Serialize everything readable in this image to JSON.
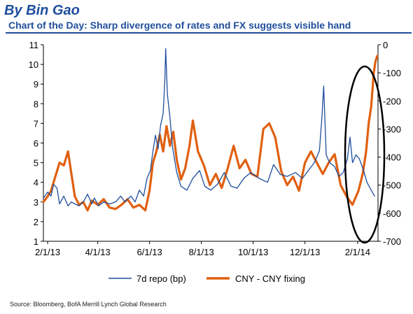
{
  "header": {
    "byline": "By Bin Gao",
    "title": "Chart of the Day: Sharp divergence of rates and FX suggests visible hand"
  },
  "source": "Source: Bloomberg, BofA Merrill Lynch Global Research",
  "chart_data": {
    "type": "line",
    "x_labels": [
      "2/1/13",
      "4/1/13",
      "6/1/13",
      "8/1/13",
      "10/1/13",
      "12/1/13",
      "2/1/14"
    ],
    "x_range": [
      "2013-01-27",
      "2014-02-25"
    ],
    "y_left": {
      "ticks": [
        "1",
        "2",
        "3",
        "4",
        "5",
        "6",
        "7",
        "8",
        "9",
        "10",
        "11"
      ],
      "range": [
        1,
        11
      ]
    },
    "y_right": {
      "ticks": [
        "0",
        "-100",
        "-200",
        "-300",
        "-400",
        "-500",
        "-600",
        "-700"
      ],
      "range": [
        -700,
        0
      ]
    },
    "grid": false,
    "legend": {
      "placement": "bottom"
    },
    "annotation": "ellipse-highlight",
    "series": [
      {
        "name": "7d repo (bp)",
        "axis": "left",
        "color": "#1f4e9c",
        "points": [
          [
            "2013-01-27",
            3.2
          ],
          [
            "2013-02-01",
            3.5
          ],
          [
            "2013-02-05",
            3.3
          ],
          [
            "2013-02-08",
            3.9
          ],
          [
            "2013-02-12",
            3.7
          ],
          [
            "2013-02-15",
            2.9
          ],
          [
            "2013-02-20",
            3.3
          ],
          [
            "2013-02-25",
            2.8
          ],
          [
            "2013-03-01",
            3.0
          ],
          [
            "2013-03-05",
            2.9
          ],
          [
            "2013-03-10",
            2.8
          ],
          [
            "2013-03-15",
            3.0
          ],
          [
            "2013-03-20",
            3.4
          ],
          [
            "2013-03-25",
            2.9
          ],
          [
            "2013-03-28",
            3.2
          ],
          [
            "2013-04-02",
            2.8
          ],
          [
            "2013-04-08",
            3.0
          ],
          [
            "2013-04-15",
            2.9
          ],
          [
            "2013-04-22",
            3.0
          ],
          [
            "2013-04-28",
            3.3
          ],
          [
            "2013-05-03",
            3.0
          ],
          [
            "2013-05-10",
            3.3
          ],
          [
            "2013-05-15",
            3.0
          ],
          [
            "2013-05-20",
            3.6
          ],
          [
            "2013-05-25",
            3.3
          ],
          [
            "2013-05-29",
            4.2
          ],
          [
            "2013-06-02",
            4.6
          ],
          [
            "2013-06-05",
            5.6
          ],
          [
            "2013-06-08",
            6.4
          ],
          [
            "2013-06-11",
            5.7
          ],
          [
            "2013-06-14",
            6.9
          ],
          [
            "2013-06-17",
            7.5
          ],
          [
            "2013-06-19",
            9.2
          ],
          [
            "2013-06-20",
            10.8
          ],
          [
            "2013-06-22",
            8.5
          ],
          [
            "2013-06-25",
            7.3
          ],
          [
            "2013-06-28",
            5.8
          ],
          [
            "2013-07-03",
            4.5
          ],
          [
            "2013-07-08",
            3.8
          ],
          [
            "2013-07-15",
            3.6
          ],
          [
            "2013-07-22",
            4.2
          ],
          [
            "2013-07-30",
            4.6
          ],
          [
            "2013-08-05",
            3.8
          ],
          [
            "2013-08-12",
            3.6
          ],
          [
            "2013-08-20",
            3.9
          ],
          [
            "2013-08-28",
            4.5
          ],
          [
            "2013-09-05",
            3.8
          ],
          [
            "2013-09-12",
            3.7
          ],
          [
            "2013-09-20",
            4.2
          ],
          [
            "2013-09-28",
            4.5
          ],
          [
            "2013-10-08",
            4.2
          ],
          [
            "2013-10-18",
            4.0
          ],
          [
            "2013-10-25",
            4.9
          ],
          [
            "2013-11-02",
            4.4
          ],
          [
            "2013-11-10",
            4.3
          ],
          [
            "2013-11-20",
            4.5
          ],
          [
            "2013-11-28",
            4.2
          ],
          [
            "2013-12-05",
            4.6
          ],
          [
            "2013-12-12",
            5.0
          ],
          [
            "2013-12-18",
            5.6
          ],
          [
            "2013-12-21",
            7.3
          ],
          [
            "2013-12-23",
            8.9
          ],
          [
            "2013-12-26",
            5.4
          ],
          [
            "2013-12-30",
            5.0
          ],
          [
            "2014-01-05",
            4.8
          ],
          [
            "2014-01-10",
            4.3
          ],
          [
            "2014-01-15",
            4.5
          ],
          [
            "2014-01-20",
            5.2
          ],
          [
            "2014-01-23",
            6.3
          ],
          [
            "2014-01-26",
            5.0
          ],
          [
            "2014-01-30",
            5.4
          ],
          [
            "2014-02-03",
            5.2
          ],
          [
            "2014-02-08",
            4.6
          ],
          [
            "2014-02-12",
            4.0
          ],
          [
            "2014-02-17",
            3.6
          ],
          [
            "2014-02-21",
            3.3
          ]
        ]
      },
      {
        "name": "CNY - CNY fixing",
        "axis": "right",
        "color": "#e06010",
        "points": [
          [
            "2013-01-27",
            -560
          ],
          [
            "2013-02-01",
            -540
          ],
          [
            "2013-02-05",
            -520
          ],
          [
            "2013-02-10",
            -470
          ],
          [
            "2013-02-15",
            -420
          ],
          [
            "2013-02-20",
            -430
          ],
          [
            "2013-02-25",
            -380
          ],
          [
            "2013-03-01",
            -460
          ],
          [
            "2013-03-05",
            -540
          ],
          [
            "2013-03-10",
            -570
          ],
          [
            "2013-03-15",
            -560
          ],
          [
            "2013-03-20",
            -590
          ],
          [
            "2013-03-25",
            -555
          ],
          [
            "2013-04-01",
            -570
          ],
          [
            "2013-04-08",
            -550
          ],
          [
            "2013-04-15",
            -580
          ],
          [
            "2013-04-22",
            -585
          ],
          [
            "2013-04-29",
            -570
          ],
          [
            "2013-05-06",
            -550
          ],
          [
            "2013-05-13",
            -580
          ],
          [
            "2013-05-20",
            -570
          ],
          [
            "2013-05-27",
            -590
          ],
          [
            "2013-06-01",
            -520
          ],
          [
            "2013-06-05",
            -420
          ],
          [
            "2013-06-09",
            -380
          ],
          [
            "2013-06-13",
            -320
          ],
          [
            "2013-06-17",
            -380
          ],
          [
            "2013-06-21",
            -290
          ],
          [
            "2013-06-25",
            -360
          ],
          [
            "2013-06-29",
            -310
          ],
          [
            "2013-07-03",
            -410
          ],
          [
            "2013-07-08",
            -480
          ],
          [
            "2013-07-13",
            -440
          ],
          [
            "2013-07-18",
            -360
          ],
          [
            "2013-07-22",
            -270
          ],
          [
            "2013-07-28",
            -380
          ],
          [
            "2013-08-04",
            -430
          ],
          [
            "2013-08-11",
            -500
          ],
          [
            "2013-08-18",
            -460
          ],
          [
            "2013-08-25",
            -510
          ],
          [
            "2013-09-01",
            -440
          ],
          [
            "2013-09-08",
            -360
          ],
          [
            "2013-09-15",
            -440
          ],
          [
            "2013-09-22",
            -410
          ],
          [
            "2013-09-29",
            -460
          ],
          [
            "2013-10-06",
            -470
          ],
          [
            "2013-10-13",
            -300
          ],
          [
            "2013-10-20",
            -280
          ],
          [
            "2013-10-27",
            -330
          ],
          [
            "2013-11-03",
            -450
          ],
          [
            "2013-11-10",
            -500
          ],
          [
            "2013-11-17",
            -470
          ],
          [
            "2013-11-24",
            -520
          ],
          [
            "2013-12-01",
            -420
          ],
          [
            "2013-12-08",
            -380
          ],
          [
            "2013-12-15",
            -420
          ],
          [
            "2013-12-22",
            -460
          ],
          [
            "2013-12-29",
            -420
          ],
          [
            "2014-01-05",
            -390
          ],
          [
            "2014-01-12",
            -500
          ],
          [
            "2014-01-19",
            -540
          ],
          [
            "2014-01-26",
            -570
          ],
          [
            "2014-02-02",
            -520
          ],
          [
            "2014-02-07",
            -460
          ],
          [
            "2014-02-11",
            -380
          ],
          [
            "2014-02-14",
            -280
          ],
          [
            "2014-02-17",
            -220
          ],
          [
            "2014-02-20",
            -100
          ],
          [
            "2014-02-22",
            -60
          ],
          [
            "2014-02-24",
            -40
          ]
        ]
      }
    ]
  }
}
